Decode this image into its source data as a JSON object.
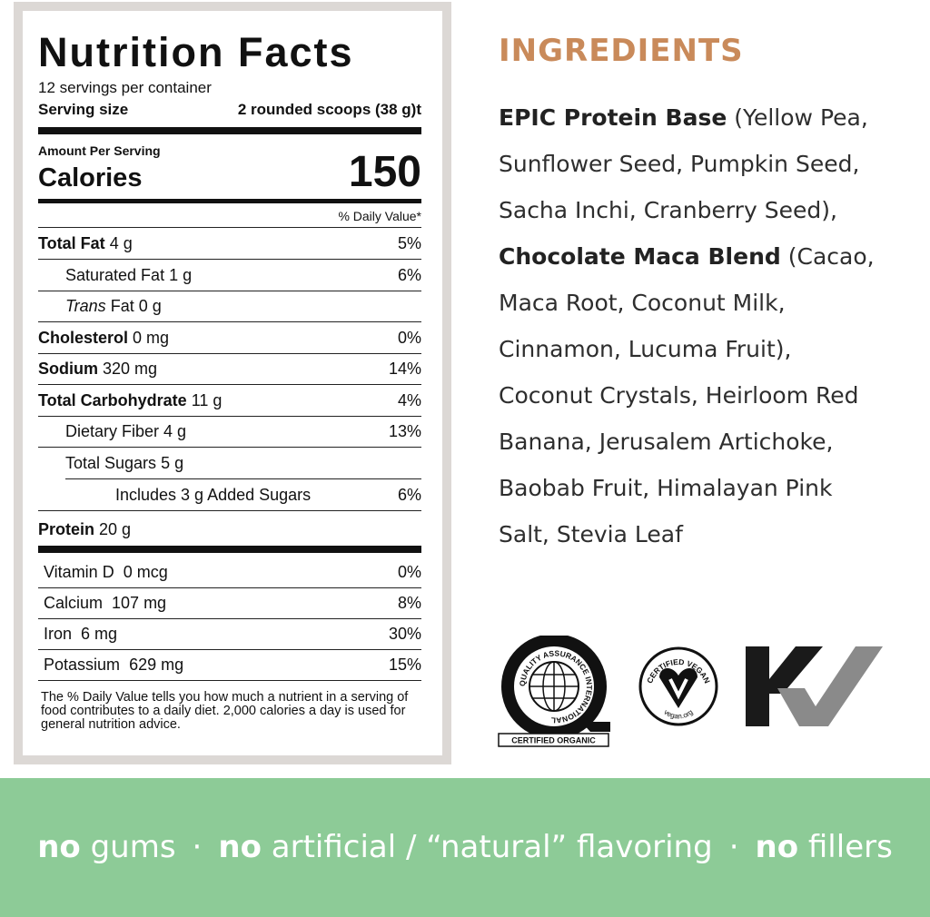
{
  "nutrition_facts": {
    "title": "Nutrition Facts",
    "servings": "12 servings per container",
    "serving_size_label": "Serving size",
    "serving_size_value": "2 rounded scoops (38 g)t",
    "amount_per_serving": "Amount Per Serving",
    "calories_label": "Calories",
    "calories": 150,
    "daily_value_header": "% Daily Value*",
    "nutrients": [
      {
        "name": "Total Fat",
        "amount": "4 g",
        "daily_value": "5%",
        "level": 0
      },
      {
        "name": "Saturated Fat",
        "amount": "1 g",
        "daily_value": "6%",
        "level": 1
      },
      {
        "name_italic": "Trans",
        "name": "Fat",
        "amount": "0 g",
        "level": 1
      },
      {
        "name": "Cholesterol",
        "amount": "0 mg",
        "daily_value": "0%",
        "level": 0
      },
      {
        "name": "Sodium",
        "amount": "320 mg",
        "daily_value": "14%",
        "level": 0
      },
      {
        "name": "Total Carbohydrate",
        "amount": "11 g",
        "daily_value": "4%",
        "level": 0
      },
      {
        "name": "Dietary Fiber",
        "amount": "4 g",
        "daily_value": "13%",
        "level": 1
      },
      {
        "name": "Total Sugars",
        "amount": "5 g",
        "level": 1
      },
      {
        "name": "Includes 3 g Added Sugars",
        "daily_value": "6%",
        "level": 2
      },
      {
        "name": "Protein",
        "amount": "20 g",
        "level": 0
      }
    ],
    "vitamins_minerals": [
      {
        "name": "Vitamin D",
        "amount": "0 mcg",
        "daily_value": "0%"
      },
      {
        "name": "Calcium",
        "amount": "107 mg",
        "daily_value": "8%"
      },
      {
        "name": "Iron",
        "amount": "6 mg",
        "daily_value": "30%"
      },
      {
        "name": "Potassium",
        "amount": "629 mg",
        "daily_value": "15%"
      }
    ],
    "footnote": "The % Daily Value tells you how much a nutrient in a serving of food contributes to a daily diet. 2,000 calories a day is used for general nutrition advice."
  },
  "ingredients": {
    "heading": "INGREDIENTS",
    "segments": [
      {
        "text": "EPIC Protein Base",
        "bold": true
      },
      {
        "text": " (Yellow Pea, Sunflower Seed, Pumpkin Seed, Sacha Inchi, Cranberry Seed), ",
        "bold": false
      },
      {
        "text": "Chocolate Maca Blend",
        "bold": true
      },
      {
        "text": " (Cacao, Maca Root, Coconut Milk, Cinnamon, Lucuma Fruit), Coconut Crystals, Heirloom Red Banana, Jerusalem Artichoke, Baobab Fruit, Himalayan Pink Salt, Stevia Leaf",
        "bold": false
      }
    ]
  },
  "certifications": {
    "qai_ring": "QUALITY ASSURANCE INTERNATIONAL",
    "organic_label": "CERTIFIED ORGANIC",
    "vegan_ring": "CERTIFIED VEGAN",
    "vegan_site": "vegan.org"
  },
  "banner": {
    "items": [
      {
        "bold": "no",
        "text": "gums"
      },
      {
        "bold": "no",
        "text": "artificial / “natural” flavoring"
      },
      {
        "bold": "no",
        "text": "fillers"
      }
    ],
    "separator": "·"
  }
}
